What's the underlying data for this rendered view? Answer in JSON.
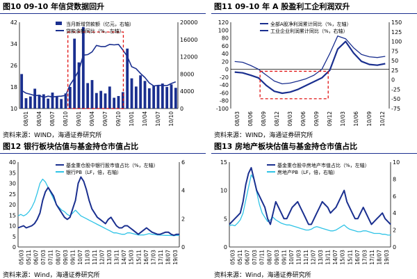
{
  "panels": [
    {
      "title": "图10 09-10 年信贷数据回升",
      "source": "资料来源：WIND，海通证券研究所",
      "chart_data": {
        "type": "bar",
        "x_ticks": [
          "08/01",
          "08/04",
          "08/07",
          "08/10",
          "09/01",
          "09/04",
          "09/07",
          "09/10",
          "10/01",
          "10/04",
          "10/07",
          "10/10"
        ],
        "left_axis": {
          "min": 10,
          "max": 42,
          "ticks": [
            10,
            18,
            26,
            34,
            42
          ],
          "unit": "%"
        },
        "right_axis": {
          "min": 0,
          "max": 20000,
          "ticks": [
            0,
            4000,
            8000,
            12000,
            16000,
            20000
          ],
          "unit": "亿元"
        },
        "series": [
          {
            "name": "当月新增贷款额（亿元，右轴）",
            "type": "bar",
            "axis": "right",
            "color": "#1a2f8f",
            "values": [
              8000,
              2400,
              2800,
              4600,
              3200,
              3300,
              2300,
              3700,
              2800,
              2200,
              3500,
              5000,
              16200,
              10700,
              18900,
              5900,
              6600,
              3600,
              4100,
              3500,
              5100,
              2500,
              2900,
              3800,
              13900,
              7000,
              5100,
              7700,
              6400,
              4700,
              5300,
              5400,
              5800,
              5000,
              5600,
              4800
            ]
          },
          {
            "name": "贷款余额同比（%，左轴）",
            "type": "line",
            "axis": "left",
            "color": "#1a2f8f",
            "values": [
              16.7,
              15.7,
              15.3,
              14.8,
              14.9,
              14.1,
              14.6,
              14.3,
              14.5,
              14.6,
              14.9,
              18.8,
              21.3,
              24.2,
              29.8,
              30.0,
              31.0,
              33.4,
              33.0,
              33.0,
              33.8,
              33.6,
              33.8,
              31.7,
              29.3,
              25.5,
              24.8,
              23.0,
              21.5,
              19.5,
              18.4,
              18.6,
              18.6,
              18.5,
              19.3,
              19.9
            ]
          }
        ]
      }
    },
    {
      "title": "图11 09-10 年 A 股盈利工企利润双升",
      "source": "资料来源：WIND，海通证券研究所",
      "chart_data": {
        "type": "line",
        "x_ticks": [
          "08/03",
          "08/06",
          "08/09",
          "08/12",
          "09/03",
          "09/06",
          "09/09",
          "09/12",
          "10/03",
          "10/06",
          "10/09",
          "10/12"
        ],
        "left_axis": {
          "min": -100,
          "max": 120,
          "ticks": [
            -100,
            -80,
            -60,
            -40,
            -20,
            0,
            20,
            40,
            60,
            80,
            100,
            120
          ]
        },
        "right_axis": {
          "min": -75,
          "max": 150,
          "ticks": [
            -75,
            -50,
            -25,
            0,
            25,
            50,
            75,
            100,
            125,
            150
          ]
        },
        "series": [
          {
            "name": "全部A股净利润累计同比（%，左轴）",
            "axis": "left",
            "color": "#1a2f8f",
            "values": [
              20,
              18,
              10,
              0,
              -15,
              -30,
              -37,
              -35,
              -30,
              -24,
              -15,
              0,
              40,
              85,
              78,
              55,
              38,
              32,
              30,
              33
            ]
          },
          {
            "name": "工业企业利润累计同比（%，右轴）",
            "axis": "right",
            "color": "#1a2f8f",
            "values": [
              20,
              18,
              12,
              5,
              -15,
              -30,
              -35,
              -32,
              -25,
              -15,
              -5,
              5,
              25,
              80,
              100,
              70,
              48,
              40,
              38,
              42
            ]
          }
        ]
      }
    },
    {
      "title": "图12 银行板块估值与基金持仓市值占比",
      "source": "资料来源：Wind，海通证券研究所",
      "chart_data": {
        "type": "line",
        "x_ticks": [
          "05/03",
          "05/11",
          "06/07",
          "07/03",
          "07/11",
          "08/07",
          "09/03",
          "09/11",
          "10/07",
          "11/03",
          "11/11",
          "12/07",
          "13/03",
          "13/11",
          "14/07",
          "15/03",
          "15/11",
          "16/07",
          "17/03",
          "17/11",
          "18/07",
          "19/03"
        ],
        "left_axis": {
          "min": 0,
          "max": 40,
          "ticks": [
            0,
            5,
            10,
            15,
            20,
            25,
            30,
            35,
            40
          ]
        },
        "right_axis": {
          "min": 0,
          "max": 6,
          "ticks": [
            0,
            2,
            4,
            6
          ]
        },
        "series": [
          {
            "name": "基金重仓股中银行股市值占比（%，左轴）",
            "axis": "left",
            "color": "#1a2f8f"
          },
          {
            "name": "银行PB（LF，倍，右轴）",
            "axis": "right",
            "color": "#2ec3e6"
          }
        ]
      }
    },
    {
      "title": "图13 房地产板块估值与基金持仓市值占比",
      "source": "资料来源：Wind，海通证券研究所",
      "chart_data": {
        "type": "line",
        "x_ticks": [
          "05/03",
          "05/11",
          "06/07",
          "07/03",
          "07/11",
          "08/07",
          "09/03",
          "09/11",
          "10/07",
          "11/03",
          "11/11",
          "12/07",
          "13/03",
          "13/11",
          "14/07",
          "15/03",
          "15/11",
          "16/07",
          "17/03",
          "17/11",
          "18/07",
          "19/03"
        ],
        "left_axis": {
          "min": 0,
          "max": 15,
          "ticks": [
            0,
            5,
            10,
            15
          ]
        },
        "right_axis": {
          "min": 0,
          "max": 10,
          "ticks": [
            0,
            2,
            4,
            6,
            8,
            10
          ]
        },
        "series": [
          {
            "name": "基金重仓股中房地产市值占比（%，左轴）",
            "axis": "left",
            "color": "#1a2f8f"
          },
          {
            "name": "房地产PB（LF，倍，右轴）",
            "axis": "right",
            "color": "#2ec3e6"
          }
        ]
      }
    }
  ]
}
